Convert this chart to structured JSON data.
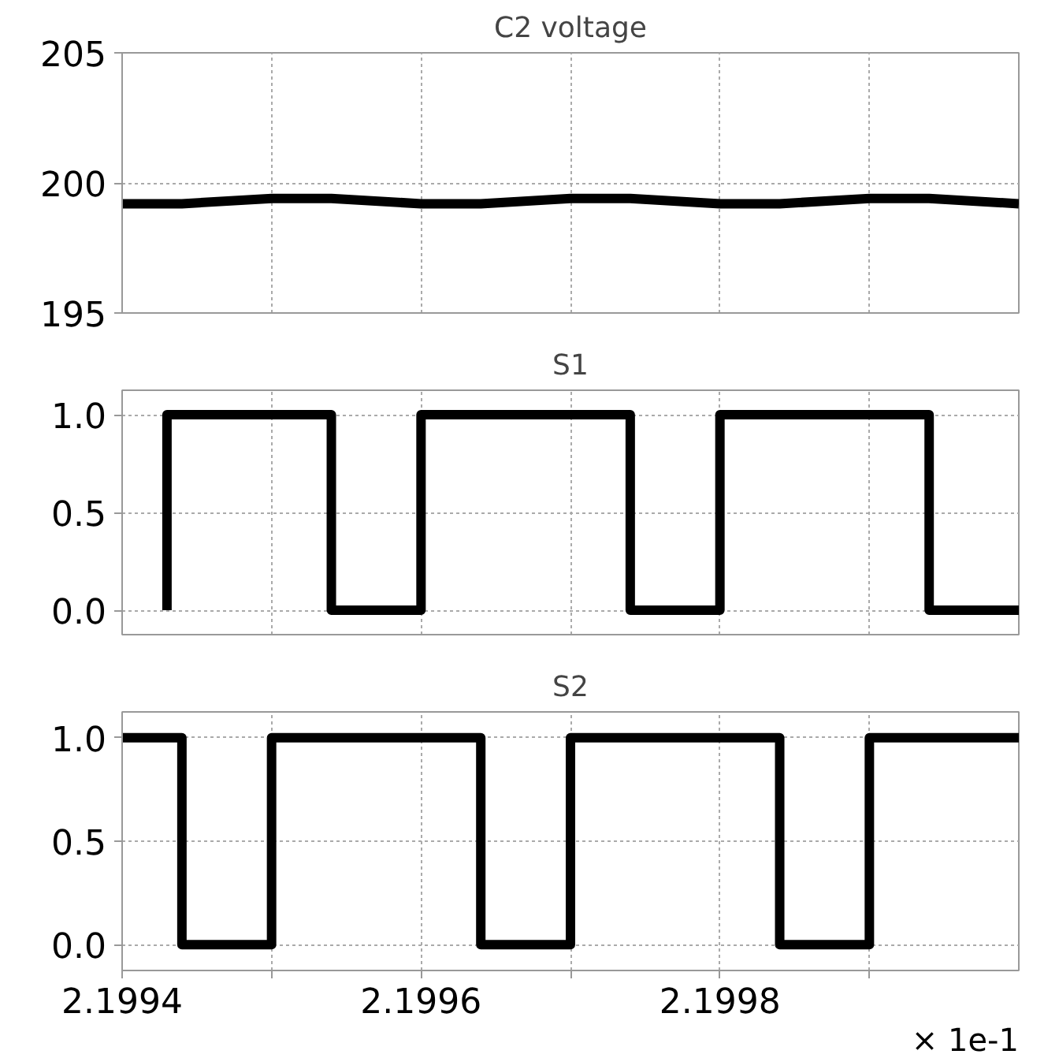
{
  "chart_data": [
    {
      "type": "line",
      "title": "C2 voltage",
      "xlim": [
        2.1994,
        2.2
      ],
      "xticks": [
        2.1994,
        {
          "value": 2.1995,
          "label": null
        },
        2.1996,
        {
          "value": 2.1997,
          "label": null
        },
        2.1998,
        {
          "value": 2.1999,
          "label": null
        }
      ],
      "ylim": [
        195,
        205
      ],
      "yticks": [
        195,
        200,
        205
      ],
      "grid": true,
      "tick_labels": "y",
      "series": [
        {
          "color": "#000000",
          "x": [
            2.1994,
            2.19944,
            2.1995,
            2.19954,
            2.1996,
            2.19964,
            2.1997,
            2.19974,
            2.1998,
            2.19984,
            2.1999,
            2.19994,
            2.2
          ],
          "values": [
            199.2,
            199.2,
            199.4,
            199.4,
            199.2,
            199.2,
            199.4,
            199.4,
            199.2,
            199.2,
            199.4,
            199.4,
            199.2
          ]
        }
      ]
    },
    {
      "type": "line",
      "title": "S1",
      "xlim": [
        2.1994,
        2.2
      ],
      "xticks": [
        2.1994,
        {
          "value": 2.1995,
          "label": null
        },
        2.1996,
        {
          "value": 2.1997,
          "label": null
        },
        2.1998,
        {
          "value": 2.1999,
          "label": null
        }
      ],
      "ylim": [
        -0.125,
        1.125
      ],
      "yticks": [
        {
          "value": 0,
          "label": "0.0"
        },
        {
          "value": 0.5,
          "label": "0.5"
        },
        {
          "value": 1,
          "label": "1.0"
        }
      ],
      "grid": true,
      "tick_labels": "y",
      "series": [
        {
          "color": "#000000",
          "x": [
            2.19943,
            2.19943,
            2.19954,
            2.19954,
            2.1996,
            2.1996,
            2.19974,
            2.19974,
            2.1998,
            2.1998,
            2.19994,
            2.19994,
            2.2
          ],
          "values": [
            0,
            1,
            1,
            0,
            0,
            1,
            1,
            0,
            0,
            1,
            1,
            0,
            0
          ]
        }
      ]
    },
    {
      "type": "line",
      "title": "S2",
      "xlim": [
        2.1994,
        2.2
      ],
      "xticks": [
        2.1994,
        {
          "value": 2.1995,
          "label": null
        },
        2.1996,
        {
          "value": 2.1997,
          "label": null
        },
        2.1998,
        {
          "value": 2.1999,
          "label": null
        }
      ],
      "ylim": [
        -0.125,
        1.125
      ],
      "yticks": [
        {
          "value": 0,
          "label": "0.0"
        },
        {
          "value": 0.5,
          "label": "0.5"
        },
        {
          "value": 1,
          "label": "1.0"
        }
      ],
      "grid": true,
      "annotations": [
        "× 1e-1"
      ],
      "series": [
        {
          "color": "#000000",
          "x": [
            2.1994,
            2.19944,
            2.19944,
            2.1995,
            2.1995,
            2.19964,
            2.19964,
            2.1997,
            2.1997,
            2.19984,
            2.19984,
            2.1999,
            2.1999,
            2.2
          ],
          "values": [
            1,
            1,
            0,
            0,
            1,
            1,
            0,
            0,
            1,
            1,
            0,
            0,
            1,
            1
          ]
        }
      ]
    }
  ]
}
